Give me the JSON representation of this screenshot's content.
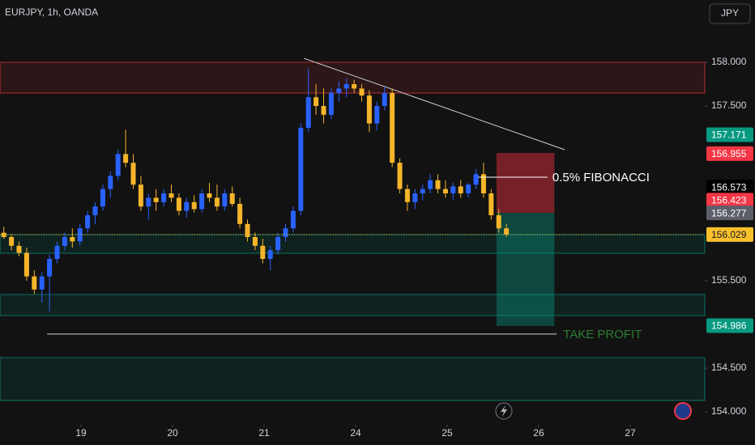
{
  "chart_data": {
    "type": "candlestick",
    "title": "EURJPY, 1h, OANDA",
    "currency": "JPY",
    "up_color": "#2962ff",
    "down_color": "#f5b52a",
    "xlim": [
      0,
      92.55
    ],
    "ylim": [
      153.852,
      158.713
    ],
    "yticks": [
      {
        "value": 154,
        "label": "154.000"
      },
      {
        "value": 154.5,
        "label": "154.500"
      },
      {
        "value": 155.5,
        "label": "155.500"
      },
      {
        "value": 157.5,
        "label": "157.500"
      },
      {
        "value": 158,
        "label": "158.000"
      }
    ],
    "xticks": [
      {
        "value": 10.64,
        "label": "19"
      },
      {
        "value": 22.66,
        "label": "20"
      },
      {
        "value": 34.68,
        "label": "21"
      },
      {
        "value": 46.7,
        "label": "24"
      },
      {
        "value": 58.72,
        "label": "25"
      },
      {
        "value": 70.74,
        "label": "26"
      },
      {
        "value": 82.77,
        "label": "27"
      }
    ],
    "candles": [
      [
        156.05,
        156.12,
        155.98,
        156.0
      ],
      [
        156.0,
        156.03,
        155.85,
        155.9
      ],
      [
        155.9,
        155.95,
        155.78,
        155.82
      ],
      [
        155.82,
        155.88,
        155.5,
        155.55
      ],
      [
        155.55,
        155.62,
        155.35,
        155.4
      ],
      [
        155.4,
        155.6,
        155.25,
        155.55
      ],
      [
        155.55,
        155.8,
        155.15,
        155.75
      ],
      [
        155.75,
        155.95,
        155.7,
        155.9
      ],
      [
        155.9,
        156.05,
        155.85,
        156.0
      ],
      [
        156.0,
        156.1,
        155.88,
        155.95
      ],
      [
        155.95,
        156.15,
        155.9,
        156.1
      ],
      [
        156.1,
        156.3,
        156.05,
        156.25
      ],
      [
        156.25,
        156.4,
        156.15,
        156.35
      ],
      [
        156.35,
        156.6,
        156.3,
        156.55
      ],
      [
        156.55,
        156.75,
        156.45,
        156.7
      ],
      [
        156.7,
        157.0,
        156.65,
        156.95
      ],
      [
        156.95,
        157.23,
        156.8,
        156.85
      ],
      [
        156.85,
        156.95,
        156.55,
        156.6
      ],
      [
        156.6,
        156.7,
        156.3,
        156.35
      ],
      [
        156.35,
        156.5,
        156.2,
        156.45
      ],
      [
        156.45,
        156.55,
        156.3,
        156.4
      ],
      [
        156.4,
        156.55,
        156.35,
        156.5
      ],
      [
        156.5,
        156.6,
        156.4,
        156.45
      ],
      [
        156.45,
        156.5,
        156.25,
        156.3
      ],
      [
        156.3,
        156.45,
        156.22,
        156.4
      ],
      [
        156.4,
        156.48,
        156.28,
        156.32
      ],
      [
        156.32,
        156.55,
        156.28,
        156.5
      ],
      [
        156.5,
        156.62,
        156.4,
        156.45
      ],
      [
        156.45,
        156.6,
        156.3,
        156.35
      ],
      [
        156.35,
        156.55,
        156.3,
        156.5
      ],
      [
        156.5,
        156.58,
        156.35,
        156.38
      ],
      [
        156.38,
        156.45,
        156.1,
        156.15
      ],
      [
        156.15,
        156.2,
        155.95,
        156.0
      ],
      [
        156.0,
        156.05,
        155.85,
        155.9
      ],
      [
        155.9,
        155.98,
        155.7,
        155.75
      ],
      [
        155.75,
        155.9,
        155.62,
        155.85
      ],
      [
        155.85,
        156.05,
        155.8,
        156.0
      ],
      [
        156.0,
        156.15,
        155.95,
        156.1
      ],
      [
        156.1,
        156.35,
        156.05,
        156.3
      ],
      [
        156.3,
        157.3,
        156.25,
        157.25
      ],
      [
        157.25,
        157.93,
        157.2,
        157.6
      ],
      [
        157.6,
        157.75,
        157.4,
        157.5
      ],
      [
        157.5,
        157.7,
        157.3,
        157.4
      ],
      [
        157.4,
        157.7,
        157.35,
        157.65
      ],
      [
        157.65,
        157.78,
        157.55,
        157.7
      ],
      [
        157.7,
        157.82,
        157.6,
        157.75
      ],
      [
        157.75,
        157.8,
        157.65,
        157.7
      ],
      [
        157.7,
        157.75,
        157.55,
        157.62
      ],
      [
        157.62,
        157.68,
        157.2,
        157.3
      ],
      [
        157.3,
        157.55,
        157.22,
        157.5
      ],
      [
        157.5,
        157.72,
        157.45,
        157.65
      ],
      [
        157.65,
        157.7,
        156.8,
        156.85
      ],
      [
        156.85,
        156.9,
        156.5,
        156.55
      ],
      [
        156.55,
        156.6,
        156.3,
        156.4
      ],
      [
        156.4,
        156.55,
        156.32,
        156.5
      ],
      [
        156.5,
        156.6,
        156.42,
        156.55
      ],
      [
        156.55,
        156.72,
        156.5,
        156.65
      ],
      [
        156.65,
        156.72,
        156.5,
        156.55
      ],
      [
        156.55,
        156.65,
        156.45,
        156.5
      ],
      [
        156.5,
        156.62,
        156.42,
        156.58
      ],
      [
        156.58,
        156.65,
        156.45,
        156.5
      ],
      [
        156.5,
        156.62,
        156.45,
        156.6
      ],
      [
        156.6,
        156.78,
        156.55,
        156.72
      ],
      [
        156.72,
        156.85,
        156.45,
        156.5
      ],
      [
        156.5,
        156.55,
        156.2,
        156.25
      ],
      [
        156.25,
        156.32,
        156.05,
        156.1
      ],
      [
        156.1,
        156.15,
        156.0,
        156.03
      ]
    ],
    "zones": [
      {
        "top": 158,
        "bottom": 157.648,
        "color": "#f23645"
      },
      {
        "top": 156.028,
        "bottom": 155.815,
        "color": "#089981"
      },
      {
        "top": 155.343,
        "bottom": 155.102,
        "color": "#089981"
      },
      {
        "top": 154.62,
        "bottom": 154.13,
        "color": "#089981"
      }
    ],
    "trendline": {
      "x": [
        39.9,
        74.15
      ],
      "y": [
        158.046,
        157.0
      ]
    },
    "position": {
      "x": [
        65.2,
        72.8
      ],
      "stop": 156.963,
      "entry": 156.277,
      "target": 154.983
    },
    "fibonacci": {
      "label": "0.5% FIBONACCI",
      "price": 156.685,
      "x": [
        62.8,
        71.9
      ]
    },
    "take_profit": {
      "label": "TAKE PROFIT",
      "price": 154.89,
      "x": [
        6.2,
        73.1
      ]
    },
    "current_price": 156.029,
    "price_badges": [
      {
        "value": 157.171,
        "color": "#089981"
      },
      {
        "value": 156.955,
        "color": "#f23645"
      },
      {
        "value": 156.573,
        "color": "#000000"
      },
      {
        "value": 156.423,
        "color": "#f23645"
      },
      {
        "value": 156.277,
        "color": "#5d606b"
      },
      {
        "value": 156.029,
        "color": "#f9c02c"
      },
      {
        "value": 154.986,
        "color": "#089981"
      }
    ]
  }
}
